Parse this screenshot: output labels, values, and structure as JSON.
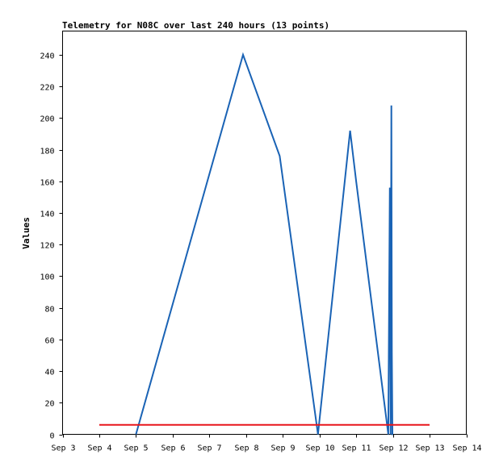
{
  "chart_data": {
    "type": "line",
    "title": "Telemetry for N08C over last 240 hours (13 points)",
    "xlabel": "",
    "ylabel": "Values",
    "x_ticks": [
      "Sep 3",
      "Sep 4",
      "Sep 5",
      "Sep 6",
      "Sep 7",
      "Sep 8",
      "Sep 9",
      "Sep 10",
      "Sep 11",
      "Sep 12",
      "Sep 13",
      "Sep 14"
    ],
    "y_ticks": [
      0,
      20,
      40,
      60,
      80,
      100,
      120,
      140,
      160,
      180,
      200,
      220,
      240
    ],
    "xlim": [
      "Sep 3",
      "Sep 14"
    ],
    "ylim": [
      0,
      255
    ],
    "grid": false,
    "series": [
      {
        "color": "#1a63b5",
        "x": [
          "Sep 5 00:00",
          "Sep 7 22:00",
          "Sep 8 22:00",
          "Sep 9 23:00",
          "Sep 10 20:00",
          "Sep 11 00:00",
          "Sep 11 21:00",
          "Sep 11 22:00",
          "Sep 11 22:30",
          "Sep 11 23:00",
          "Sep 11 23:20",
          "Sep 11 23:40",
          "Sep 12 00:00"
        ],
        "y": [
          0,
          240,
          176,
          0,
          192,
          160,
          0,
          156,
          0,
          208,
          52,
          0,
          0
        ]
      },
      {
        "color": "#e8161b",
        "x": [
          "Sep 4",
          "Sep 13"
        ],
        "y": [
          6,
          6
        ]
      }
    ]
  }
}
